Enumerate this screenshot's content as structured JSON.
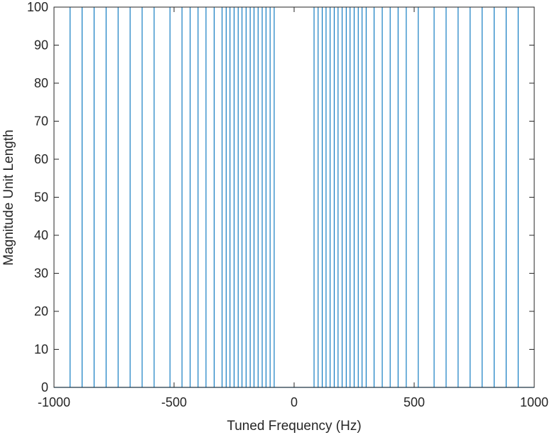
{
  "chart_data": {
    "type": "stem",
    "title": "",
    "xlabel": "Tuned Frequency (Hz)",
    "ylabel": "Magnitude Unit Length",
    "xlim": [
      -1000,
      1000
    ],
    "ylim": [
      0,
      100
    ],
    "xticks": [
      -1000,
      -500,
      0,
      500,
      1000
    ],
    "xtick_labels": [
      "-1000",
      "-500",
      "0",
      "500",
      "1000"
    ],
    "yticks": [
      0,
      10,
      20,
      30,
      40,
      50,
      60,
      70,
      80,
      90,
      100
    ],
    "ytick_labels": [
      "0",
      "10",
      "20",
      "30",
      "40",
      "50",
      "60",
      "70",
      "80",
      "90",
      "100"
    ],
    "grid": false,
    "box": true,
    "line_color": "#0072BD",
    "axis_color": "#262626",
    "baseline": 0,
    "series": [
      {
        "x": [
          -933,
          -883,
          -833,
          -783,
          -733,
          -683,
          -633,
          -583,
          -517,
          -467,
          -433,
          -400,
          -367,
          -333,
          -300,
          -283,
          -267,
          -250,
          -233,
          -217,
          -200,
          -183,
          -167,
          -150,
          -133,
          -117,
          -100,
          -83,
          83,
          100,
          117,
          133,
          150,
          167,
          183,
          200,
          217,
          233,
          250,
          267,
          283,
          300,
          333,
          367,
          400,
          433,
          467,
          517,
          583,
          633,
          683,
          733,
          783,
          833,
          883,
          933
        ],
        "y": [
          100,
          100,
          100,
          100,
          100,
          100,
          100,
          100,
          100,
          100,
          100,
          100,
          100,
          100,
          100,
          100,
          100,
          100,
          100,
          100,
          100,
          100,
          100,
          100,
          100,
          100,
          100,
          100,
          100,
          100,
          100,
          100,
          100,
          100,
          100,
          100,
          100,
          100,
          100,
          100,
          100,
          100,
          100,
          100,
          100,
          100,
          100,
          100,
          100,
          100,
          100,
          100,
          100,
          100,
          100,
          100
        ]
      }
    ]
  }
}
